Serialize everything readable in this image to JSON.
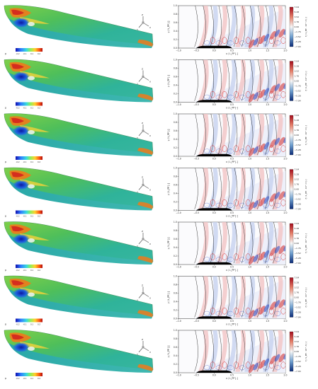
{
  "colors": {
    "hull_green": "#44b86a",
    "hull_teal": "#2fb0a8",
    "pressure_low": "#1a1acc",
    "pressure_high": "#d21f1f",
    "wave_positive": "#d62728",
    "wave_negative": "#1f3fbf"
  },
  "axes": {
    "xaxis": "x / L_PP [-]",
    "yaxis": "y / L_PP [-]",
    "cbar_label": "ζ / L_PP · 10^-3 [-]",
    "xticks": [
      "−1.0",
      "−0.5",
      "0.0",
      "0.5",
      "1.0",
      "1.5",
      "2.0"
    ],
    "yticks": [
      "0.0",
      "0.2",
      "0.4",
      "0.6",
      "0.8",
      "1.0"
    ],
    "cbar_ticks": [
      "7.04",
      "5.28",
      "3.52",
      "1.76",
      "0.00",
      "−1.76",
      "−3.52",
      "−5.28",
      "−7.04"
    ]
  },
  "pressure_bar": {
    "label": "p",
    "ticks": [
      "-0.2",
      "-0.1",
      "0.1",
      "0.2"
    ]
  },
  "triad": {
    "x": "X",
    "y": "Y",
    "z": "Z"
  },
  "panels": [
    {
      "id": 1
    },
    {
      "id": 2
    },
    {
      "id": 3
    },
    {
      "id": 4
    },
    {
      "id": 5
    },
    {
      "id": 6
    },
    {
      "id": 7
    }
  ]
}
